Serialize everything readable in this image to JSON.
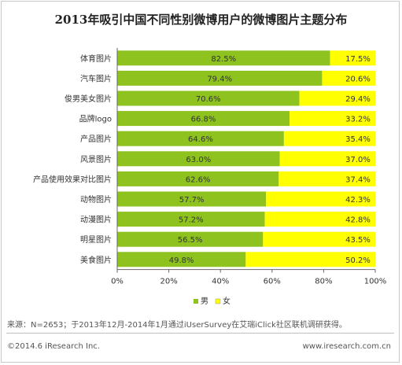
{
  "chart_data": {
    "type": "bar",
    "orientation": "horizontal",
    "stacked": true,
    "title": "2013年吸引中国不同性别微博用户的微博图片主题分布",
    "categories": [
      "体育图片",
      "汽车图片",
      "俊男美女图片",
      "品牌logo",
      "产品图片",
      "风景图片",
      "产品使用效果对比图片",
      "动物图片",
      "动漫图片",
      "明星图片",
      "美食图片"
    ],
    "series": [
      {
        "name": "男",
        "color": "#8dc21f",
        "values": [
          82.5,
          79.4,
          70.6,
          66.8,
          64.6,
          63.0,
          62.6,
          57.7,
          57.2,
          56.5,
          49.8
        ]
      },
      {
        "name": "女",
        "color": "#ffff00",
        "values": [
          17.5,
          20.6,
          29.4,
          33.2,
          35.4,
          37.0,
          37.4,
          42.3,
          42.8,
          43.5,
          50.2
        ]
      }
    ],
    "value_labels": {
      "男": [
        "82.5%",
        "79.4%",
        "70.6%",
        "66.8%",
        "64.6%",
        "63.0%",
        "62.6%",
        "57.7%",
        "57.2%",
        "56.5%",
        "49.8%"
      ],
      "女": [
        "17.5%",
        "20.6%",
        "29.4%",
        "33.2%",
        "35.4%",
        "37.0%",
        "37.4%",
        "42.3%",
        "42.8%",
        "43.5%",
        "50.2%"
      ]
    },
    "xlim": [
      0,
      100
    ],
    "xticks": [
      "0%",
      "20%",
      "40%",
      "60%",
      "80%",
      "100%"
    ],
    "grid": false,
    "legend_position": "bottom"
  },
  "footer": {
    "source": "来源：N=2653；于2013年12月-2014年1月通过iUserSurvey在艾瑞iClick社区联机调研获得。",
    "copyright": "©2014.6 iResearch Inc.",
    "website": "www.iresearch.com.cn"
  }
}
